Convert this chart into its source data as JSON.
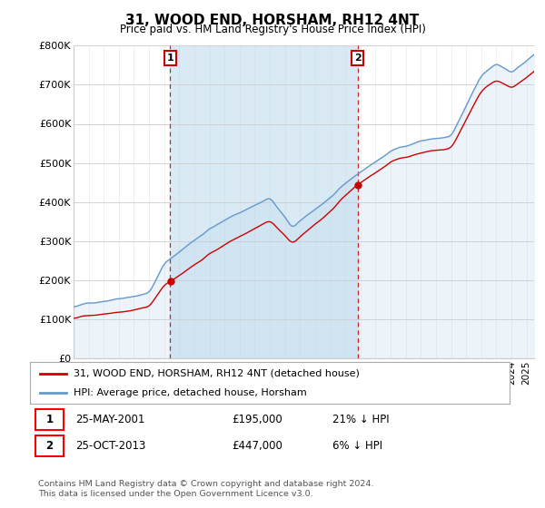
{
  "title": "31, WOOD END, HORSHAM, RH12 4NT",
  "subtitle": "Price paid vs. HM Land Registry's House Price Index (HPI)",
  "ylabel_ticks": [
    "£0",
    "£100K",
    "£200K",
    "£300K",
    "£400K",
    "£500K",
    "£600K",
    "£700K",
    "£800K"
  ],
  "ylim": [
    0,
    800000
  ],
  "xlim_start": 1995.0,
  "xlim_end": 2025.5,
  "sale1_x": 2001.4,
  "sale1_y": 195000,
  "sale2_x": 2013.8,
  "sale2_y": 447000,
  "property_color": "#cc0000",
  "hpi_color": "#6699cc",
  "hpi_fill_color": "#daeaf5",
  "legend_property": "31, WOOD END, HORSHAM, RH12 4NT (detached house)",
  "legend_hpi": "HPI: Average price, detached house, Horsham",
  "note1_date": "25-MAY-2001",
  "note1_price": "£195,000",
  "note1_hpi": "21% ↓ HPI",
  "note2_date": "25-OCT-2013",
  "note2_price": "£447,000",
  "note2_hpi": "6% ↓ HPI",
  "footer": "Contains HM Land Registry data © Crown copyright and database right 2024.\nThis data is licensed under the Open Government Licence v3.0.",
  "background_color": "#ffffff",
  "grid_color": "#cccccc"
}
